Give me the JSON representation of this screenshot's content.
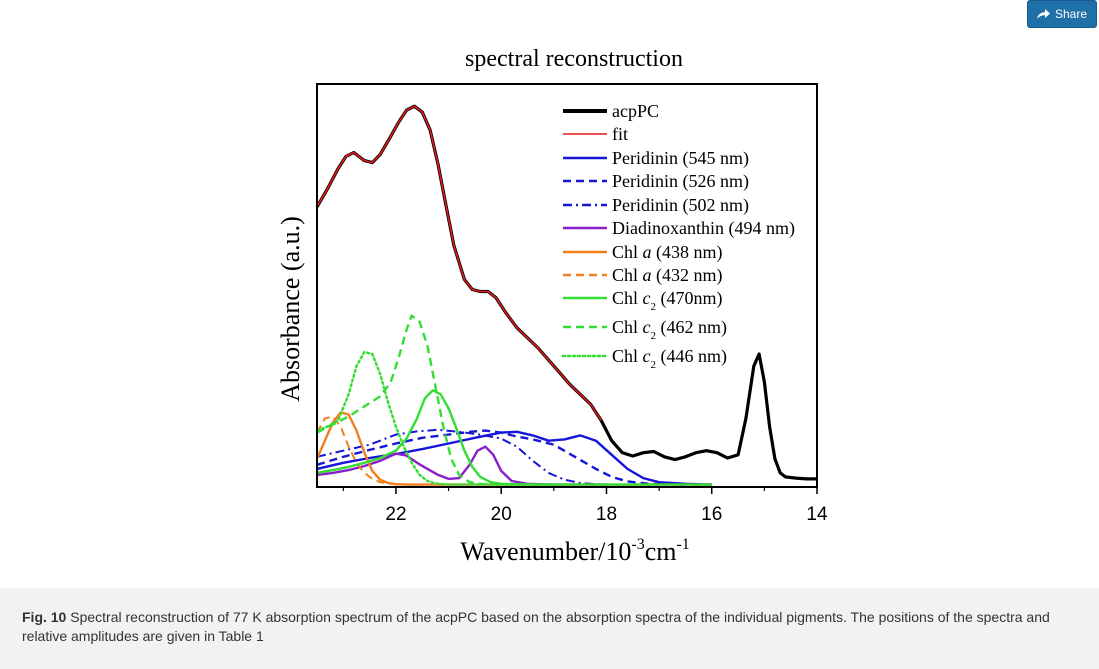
{
  "share": {
    "label": "Share",
    "icon": "share-icon"
  },
  "caption": {
    "fig_label": "Fig. 10",
    "text": "Spectral reconstruction of 77 K absorption spectrum of the acpPC based on the absorption spectra of the individual pigments. The positions of the spectra and relative amplitudes are given in Table 1"
  },
  "chart_data": {
    "type": "line",
    "title": "spectral reconstruction",
    "xlabel": {
      "base": "Wavenumber/10",
      "exp1": "-3",
      "unit": "cm",
      "exp2": "-1"
    },
    "ylabel": "Absorbance (a.u.)",
    "xlim": [
      23.5,
      14
    ],
    "ylim": [
      0,
      1.0
    ],
    "xticks": [
      22,
      20,
      18,
      16,
      14
    ],
    "xticks_minor": [
      23,
      21,
      19,
      17,
      15
    ],
    "legend_position": "top-right",
    "series": [
      {
        "name": "acpPC",
        "color": "#000000",
        "dash": "solid",
        "width": 3.2,
        "x": [
          23.5,
          23.3,
          23.1,
          22.95,
          22.8,
          22.6,
          22.45,
          22.3,
          22.1,
          21.95,
          21.8,
          21.65,
          21.5,
          21.35,
          21.2,
          21.05,
          20.9,
          20.7,
          20.55,
          20.4,
          20.25,
          20.1,
          19.9,
          19.7,
          19.5,
          19.3,
          19.1,
          18.9,
          18.7,
          18.5,
          18.3,
          18.1,
          17.9,
          17.7,
          17.5,
          17.3,
          17.1,
          16.9,
          16.7,
          16.5,
          16.3,
          16.1,
          15.9,
          15.7,
          15.5,
          15.35,
          15.2,
          15.1,
          15.0,
          14.9,
          14.8,
          14.7,
          14.6,
          14.4,
          14.2,
          14.0
        ],
        "y": [
          0.695,
          0.74,
          0.79,
          0.82,
          0.83,
          0.81,
          0.805,
          0.825,
          0.87,
          0.905,
          0.935,
          0.945,
          0.93,
          0.885,
          0.8,
          0.7,
          0.6,
          0.515,
          0.49,
          0.485,
          0.485,
          0.47,
          0.43,
          0.395,
          0.37,
          0.345,
          0.315,
          0.285,
          0.255,
          0.23,
          0.205,
          0.165,
          0.115,
          0.085,
          0.077,
          0.085,
          0.088,
          0.075,
          0.068,
          0.075,
          0.085,
          0.09,
          0.085,
          0.072,
          0.08,
          0.17,
          0.3,
          0.33,
          0.26,
          0.15,
          0.07,
          0.035,
          0.025,
          0.022,
          0.02,
          0.02
        ]
      },
      {
        "name": "fit",
        "color": "#e41a1c",
        "dash": "solid",
        "width": 1.6,
        "x": [
          23.5,
          23.3,
          23.1,
          22.95,
          22.8,
          22.6,
          22.45,
          22.3,
          22.1,
          21.95,
          21.8,
          21.65,
          21.5,
          21.35,
          21.2,
          21.05,
          20.9,
          20.7,
          20.55,
          20.4,
          20.25,
          20.1,
          19.9,
          19.7,
          19.5,
          19.3,
          19.1,
          18.9,
          18.7,
          18.5,
          18.3,
          18.1
        ],
        "y": [
          0.695,
          0.74,
          0.79,
          0.82,
          0.83,
          0.81,
          0.805,
          0.825,
          0.87,
          0.905,
          0.935,
          0.945,
          0.93,
          0.885,
          0.8,
          0.7,
          0.6,
          0.515,
          0.49,
          0.485,
          0.485,
          0.47,
          0.43,
          0.395,
          0.37,
          0.345,
          0.315,
          0.285,
          0.255,
          0.23,
          0.205,
          0.165
        ]
      },
      {
        "name": "Peridinin (545 nm)",
        "color": "#1616d8",
        "dash": "solid",
        "width": 2.4,
        "x": [
          23.5,
          23.0,
          22.5,
          22.0,
          21.5,
          21.0,
          20.5,
          20.0,
          19.7,
          19.4,
          19.1,
          18.8,
          18.5,
          18.2,
          17.9,
          17.6,
          17.3,
          17.0,
          16.5,
          16.0
        ],
        "y": [
          0.045,
          0.06,
          0.072,
          0.082,
          0.094,
          0.108,
          0.122,
          0.135,
          0.137,
          0.128,
          0.115,
          0.118,
          0.128,
          0.115,
          0.08,
          0.045,
          0.022,
          0.012,
          0.008,
          0.006
        ]
      },
      {
        "name": "Peridinin (526 nm)",
        "color": "#1616d8",
        "dash": "dash",
        "width": 2.4,
        "x": [
          23.5,
          23.0,
          22.5,
          22.0,
          21.5,
          21.0,
          20.6,
          20.3,
          20.0,
          19.7,
          19.4,
          19.0,
          18.6,
          18.2,
          17.9,
          17.6,
          17.2,
          16.5,
          16.0
        ],
        "y": [
          0.055,
          0.075,
          0.092,
          0.108,
          0.122,
          0.13,
          0.137,
          0.14,
          0.135,
          0.125,
          0.118,
          0.105,
          0.075,
          0.045,
          0.025,
          0.014,
          0.008,
          0.006,
          0.006
        ]
      },
      {
        "name": "Peridinin (502 nm)",
        "color": "#1616d8",
        "dash": "dashdot",
        "width": 2.0,
        "x": [
          23.5,
          23.0,
          22.5,
          22.0,
          21.6,
          21.2,
          20.8,
          20.4,
          20.0,
          19.7,
          19.4,
          19.1,
          18.8,
          18.5,
          18.2,
          17.8,
          17.0,
          16.0
        ],
        "y": [
          0.075,
          0.09,
          0.105,
          0.13,
          0.138,
          0.142,
          0.137,
          0.13,
          0.12,
          0.1,
          0.065,
          0.035,
          0.018,
          0.01,
          0.007,
          0.006,
          0.006,
          0.006
        ]
      },
      {
        "name": "Diadinoxanthin (494 nm)",
        "color": "#8a1fc9",
        "dash": "solid",
        "width": 2.4,
        "x": [
          23.5,
          23.2,
          22.9,
          22.6,
          22.3,
          22.0,
          21.8,
          21.6,
          21.4,
          21.2,
          21.0,
          20.8,
          20.6,
          20.45,
          20.3,
          20.15,
          20.0,
          19.8,
          19.5,
          19.0,
          18.5,
          18.0
        ],
        "y": [
          0.03,
          0.035,
          0.042,
          0.052,
          0.065,
          0.083,
          0.078,
          0.06,
          0.045,
          0.03,
          0.02,
          0.022,
          0.055,
          0.09,
          0.1,
          0.08,
          0.04,
          0.015,
          0.008,
          0.006,
          0.006,
          0.006
        ]
      },
      {
        "name": "Chl a (438 nm)",
        "color": "#f07f1e",
        "dash": "solid",
        "width": 2.4,
        "x": [
          23.5,
          23.35,
          23.2,
          23.05,
          22.9,
          22.75,
          22.6,
          22.45,
          22.3,
          22.15,
          22.0,
          21.8,
          21.5,
          21.0,
          20.5,
          20.0,
          19.0,
          18.0,
          17.0,
          16.0
        ],
        "y": [
          0.07,
          0.115,
          0.16,
          0.185,
          0.18,
          0.14,
          0.085,
          0.04,
          0.018,
          0.01,
          0.007,
          0.006,
          0.006,
          0.006,
          0.006,
          0.006,
          0.006,
          0.006,
          0.006,
          0.006
        ]
      },
      {
        "name": "Chl a (432 nm)",
        "color": "#f07f1e",
        "dash": "dash",
        "width": 2.0,
        "x": [
          23.5,
          23.35,
          23.2,
          23.05,
          22.9,
          22.75,
          22.6,
          22.45,
          22.3,
          22.1,
          21.8,
          21.5
        ],
        "y": [
          0.135,
          0.17,
          0.175,
          0.15,
          0.1,
          0.06,
          0.035,
          0.02,
          0.012,
          0.008,
          0.006,
          0.006
        ]
      },
      {
        "name": "Chl c2 (470nm)",
        "color": "#33dd33",
        "dash": "solid",
        "width": 2.4,
        "x": [
          23.5,
          23.2,
          22.9,
          22.6,
          22.3,
          22.0,
          21.8,
          21.6,
          21.45,
          21.3,
          21.15,
          21.0,
          20.85,
          20.7,
          20.55,
          20.4,
          20.2,
          20.0,
          19.5,
          19.0,
          18.0,
          17.0,
          16.0
        ],
        "y": [
          0.035,
          0.042,
          0.05,
          0.06,
          0.072,
          0.09,
          0.12,
          0.17,
          0.22,
          0.24,
          0.23,
          0.195,
          0.145,
          0.09,
          0.05,
          0.025,
          0.012,
          0.008,
          0.006,
          0.006,
          0.006,
          0.006,
          0.006
        ]
      },
      {
        "name": "Chl c2 (462 nm)",
        "color": "#33dd33",
        "dash": "dash",
        "width": 2.4,
        "x": [
          23.5,
          23.2,
          22.9,
          22.6,
          22.3,
          22.1,
          21.95,
          21.8,
          21.7,
          21.55,
          21.4,
          21.25,
          21.1,
          20.95,
          20.8,
          20.6,
          20.4,
          20.2,
          20.0,
          19.5,
          19.0
        ],
        "y": [
          0.135,
          0.155,
          0.175,
          0.2,
          0.225,
          0.26,
          0.32,
          0.39,
          0.425,
          0.41,
          0.35,
          0.25,
          0.15,
          0.07,
          0.03,
          0.012,
          0.008,
          0.006,
          0.006,
          0.006,
          0.006
        ]
      },
      {
        "name": "Chl c2 (446 nm)",
        "color": "#33dd33",
        "dash": "dot",
        "width": 2.4,
        "x": [
          23.5,
          23.3,
          23.1,
          22.9,
          22.75,
          22.6,
          22.45,
          22.3,
          22.15,
          22.0,
          21.85,
          21.7,
          21.55,
          21.4,
          21.25,
          21.1,
          20.9,
          20.6,
          20.0,
          19.0
        ],
        "y": [
          0.14,
          0.15,
          0.165,
          0.23,
          0.3,
          0.335,
          0.33,
          0.28,
          0.21,
          0.15,
          0.1,
          0.06,
          0.03,
          0.015,
          0.009,
          0.007,
          0.006,
          0.006,
          0.006,
          0.006
        ]
      }
    ],
    "legend_items": [
      {
        "label": "acpPC"
      },
      {
        "label": "fit"
      },
      {
        "label": "Peridinin (545 nm)"
      },
      {
        "label": "Peridinin (526 nm)"
      },
      {
        "label": "Peridinin (502 nm)"
      },
      {
        "label": "Diadinoxanthin (494 nm)"
      },
      {
        "label": "Chl",
        "italic": "a",
        "rest": " (438 nm)"
      },
      {
        "label": "Chl",
        "italic": "a",
        "rest": " (432 nm)"
      },
      {
        "label": "Chl",
        "italic": "c",
        "sub": "2",
        "rest": " (470nm)"
      },
      {
        "label": "Chl",
        "italic": "c",
        "sub": "2",
        "rest": " (462 nm)"
      },
      {
        "label": "Chl",
        "italic": "c",
        "sub": "2",
        "rest": " (446 nm)"
      }
    ]
  }
}
